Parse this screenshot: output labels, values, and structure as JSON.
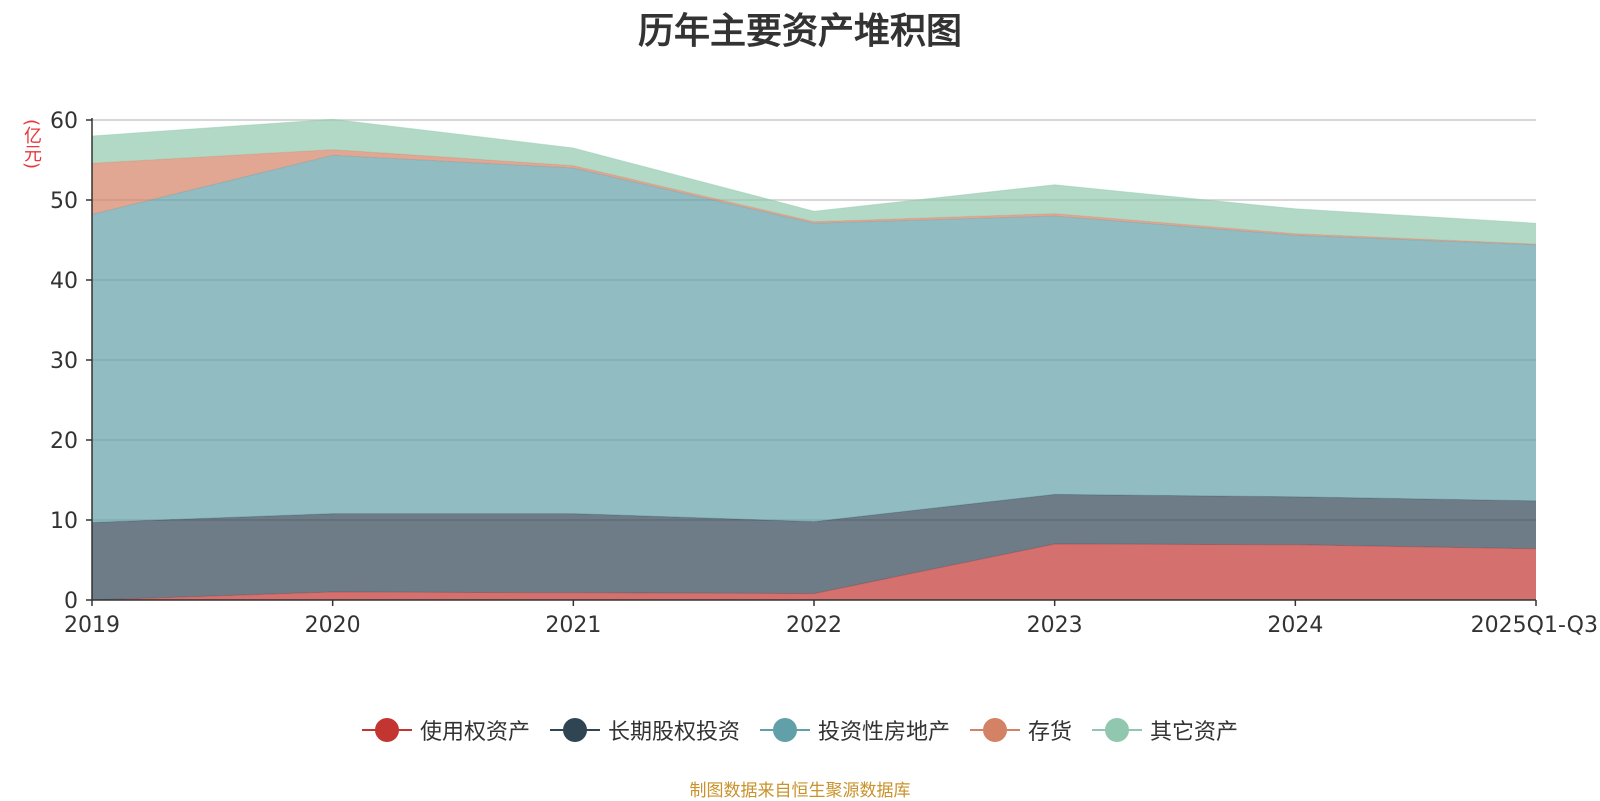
{
  "title": "历年主要资产堆积图",
  "y_unit": "(亿元)",
  "source": "制图数据来自恒生聚源数据库",
  "chart_data": {
    "type": "area",
    "stacked": true,
    "title": "历年主要资产堆积图",
    "ylabel": "(亿元)",
    "xlabel": "",
    "ylim": [
      0,
      60
    ],
    "yticks": [
      0,
      10,
      20,
      30,
      40,
      50,
      60
    ],
    "grid": true,
    "legend_position": "bottom",
    "categories": [
      "2019",
      "2020",
      "2021",
      "2022",
      "2023",
      "2024",
      "2025Q1-Q3"
    ],
    "series": [
      {
        "name": "使用权资产",
        "color": "#c23531",
        "values": [
          0.0,
          1.0,
          0.9,
          0.8,
          7.0,
          6.9,
          6.4
        ]
      },
      {
        "name": "长期股权投资",
        "color": "#2f4554",
        "values": [
          9.7,
          9.8,
          9.9,
          9.0,
          6.2,
          6.0,
          6.0
        ]
      },
      {
        "name": "投资性房地产",
        "color": "#61a0a8",
        "values": [
          38.5,
          44.8,
          43.2,
          37.3,
          34.8,
          32.7,
          32.0
        ]
      },
      {
        "name": "存货",
        "color": "#d48265",
        "values": [
          6.4,
          0.7,
          0.3,
          0.2,
          0.3,
          0.2,
          0.1
        ]
      },
      {
        "name": "其它资产",
        "color": "#91c7ae",
        "values": [
          3.4,
          3.8,
          2.2,
          1.3,
          3.6,
          3.1,
          2.6
        ]
      }
    ]
  }
}
